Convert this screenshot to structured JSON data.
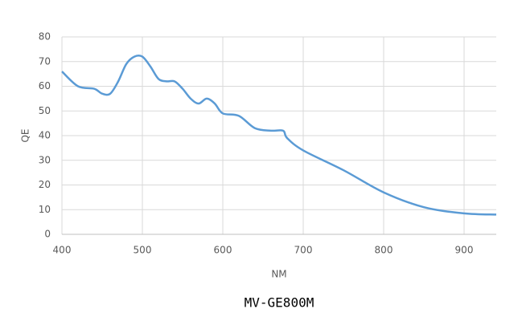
{
  "chart_data": {
    "type": "line",
    "caption": "MV-GE800M",
    "xlabel": "NM",
    "ylabel": "QE",
    "x": [
      400,
      420,
      440,
      450,
      460,
      470,
      480,
      490,
      500,
      510,
      520,
      530,
      540,
      550,
      560,
      570,
      580,
      590,
      600,
      620,
      640,
      660,
      675,
      680,
      700,
      750,
      800,
      850,
      900,
      940
    ],
    "series": [
      {
        "name": "QE",
        "color": "#5b9bd5",
        "values": [
          66,
          60,
          59,
          57,
          57,
          62,
          69,
          72,
          72,
          68,
          63,
          62,
          62,
          59,
          55,
          53,
          55,
          53,
          49,
          48,
          43,
          42,
          42,
          39,
          34,
          26,
          17,
          11,
          8.5,
          8
        ]
      }
    ],
    "xlim": [
      400,
      940
    ],
    "xticks": [
      400,
      500,
      600,
      700,
      800,
      900
    ],
    "ylim": [
      0,
      80
    ],
    "yticks": [
      0,
      10,
      20,
      30,
      40,
      50,
      60,
      70,
      80
    ],
    "grid": true
  }
}
